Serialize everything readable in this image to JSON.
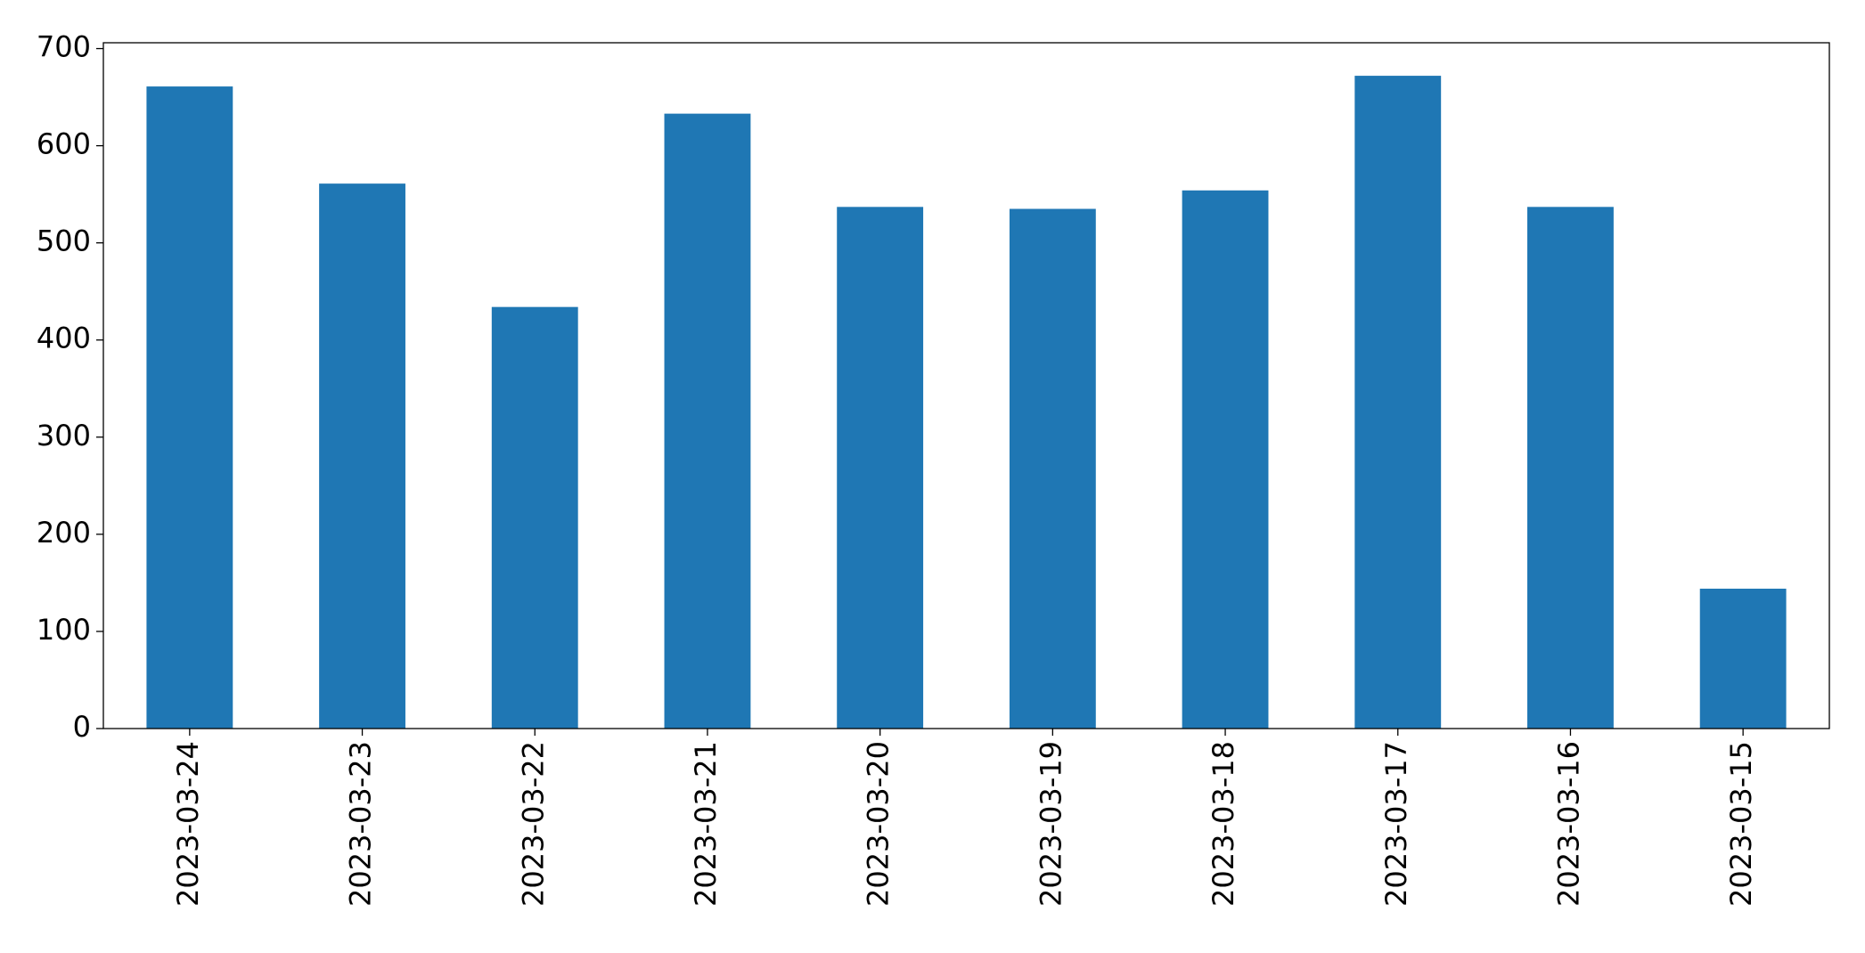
{
  "chart_data": {
    "type": "bar",
    "categories": [
      "2023-03-24",
      "2023-03-23",
      "2023-03-22",
      "2023-03-21",
      "2023-03-20",
      "2023-03-19",
      "2023-03-18",
      "2023-03-17",
      "2023-03-16",
      "2023-03-15"
    ],
    "values": [
      661,
      561,
      434,
      633,
      537,
      535,
      554,
      672,
      537,
      144
    ],
    "color": "#1f77b4",
    "ylim": [
      0,
      706
    ],
    "yticks": [
      0,
      100,
      200,
      300,
      400,
      500,
      600,
      700
    ],
    "grid": false
  }
}
